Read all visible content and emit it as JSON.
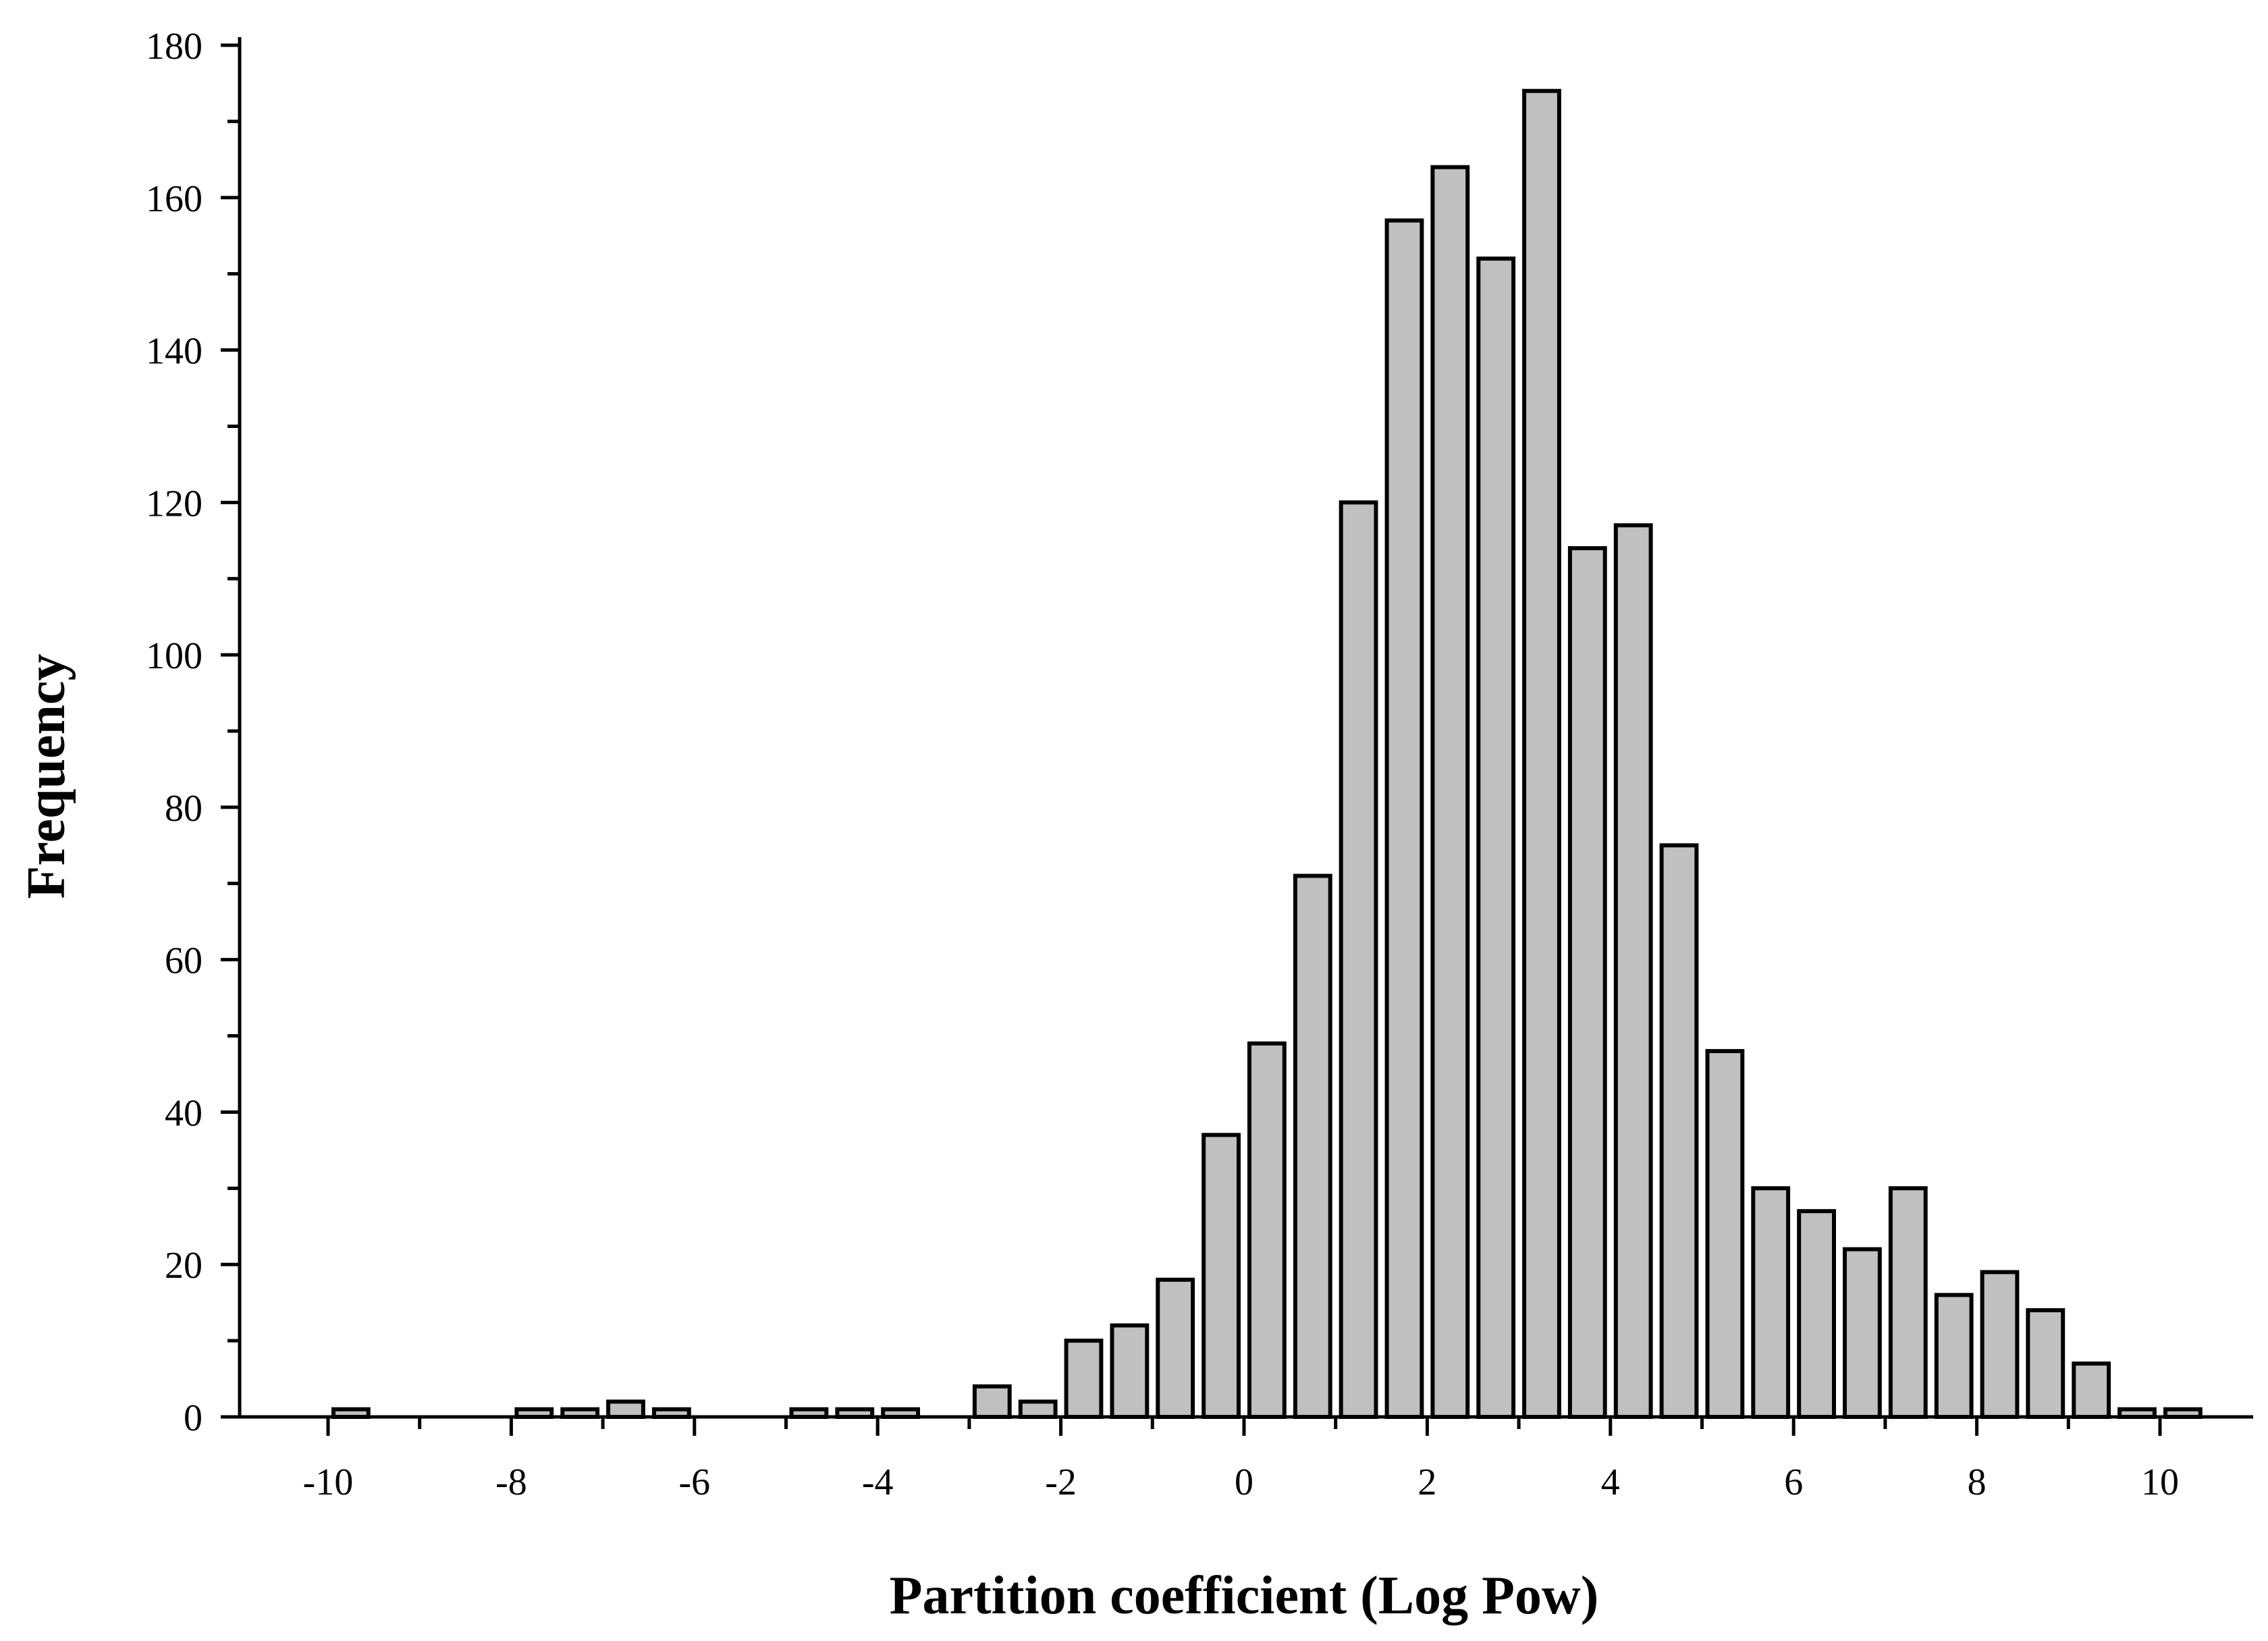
{
  "chart_data": {
    "type": "bar",
    "xlabel": "Partition coefficient (Log Pow)",
    "ylabel": "Frequency",
    "xlim": [
      -11,
      11
    ],
    "ylim": [
      0,
      180
    ],
    "bin_width": 0.5,
    "x_ticks": [
      "-10",
      "-8",
      "-6",
      "-4",
      "-2",
      "0",
      "2",
      "4",
      "6",
      "8",
      "10"
    ],
    "y_ticks": [
      "0",
      "20",
      "40",
      "60",
      "80",
      "100",
      "120",
      "140",
      "160",
      "180"
    ],
    "x_tick_values": [
      -10,
      -8,
      -6,
      -4,
      -2,
      0,
      2,
      4,
      6,
      8,
      10
    ],
    "y_tick_values": [
      0,
      20,
      40,
      60,
      80,
      100,
      120,
      140,
      160,
      180
    ],
    "grid": false,
    "bar_fill": "#c0c0c0",
    "bar_stroke": "#000000",
    "bins": [
      {
        "x": -9.75,
        "value": 1
      },
      {
        "x": -7.75,
        "value": 1
      },
      {
        "x": -7.25,
        "value": 1
      },
      {
        "x": -6.75,
        "value": 2
      },
      {
        "x": -6.25,
        "value": 1
      },
      {
        "x": -4.75,
        "value": 1
      },
      {
        "x": -4.25,
        "value": 1
      },
      {
        "x": -3.75,
        "value": 1
      },
      {
        "x": -2.75,
        "value": 4
      },
      {
        "x": -2.25,
        "value": 2
      },
      {
        "x": -1.75,
        "value": 10
      },
      {
        "x": -1.25,
        "value": 12
      },
      {
        "x": -0.75,
        "value": 18
      },
      {
        "x": -0.25,
        "value": 37
      },
      {
        "x": 0.25,
        "value": 49
      },
      {
        "x": 0.75,
        "value": 71
      },
      {
        "x": 1.25,
        "value": 120
      },
      {
        "x": 1.75,
        "value": 157
      },
      {
        "x": 2.25,
        "value": 164
      },
      {
        "x": 2.75,
        "value": 152
      },
      {
        "x": 3.25,
        "value": 174
      },
      {
        "x": 3.75,
        "value": 114
      },
      {
        "x": 4.25,
        "value": 117
      },
      {
        "x": 4.75,
        "value": 75
      },
      {
        "x": 5.25,
        "value": 48
      },
      {
        "x": 5.75,
        "value": 30
      },
      {
        "x": 6.25,
        "value": 27
      },
      {
        "x": 6.75,
        "value": 22
      },
      {
        "x": 7.25,
        "value": 30
      },
      {
        "x": 7.75,
        "value": 16
      },
      {
        "x": 8.25,
        "value": 19
      },
      {
        "x": 8.75,
        "value": 14
      },
      {
        "x": 9.25,
        "value": 7
      },
      {
        "x": 9.75,
        "value": 1
      },
      {
        "x": 10.25,
        "value": 1
      }
    ]
  }
}
